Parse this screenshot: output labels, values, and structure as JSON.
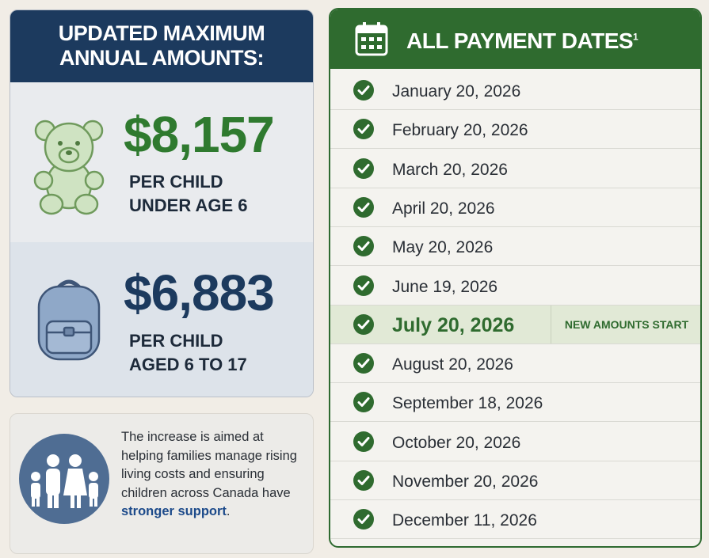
{
  "amounts_panel": {
    "header_lines": [
      "UPDATED MAXIMUM",
      "ANNUAL AMOUNTS:"
    ],
    "items": [
      {
        "amount": "$8,157",
        "label_lines": [
          "PER CHILD",
          "UNDER AGE 6"
        ]
      },
      {
        "amount": "$6,883",
        "label_lines": [
          "PER CHILD",
          "AGED 6 TO 17"
        ]
      }
    ]
  },
  "note": {
    "text": "The increase is aimed at helping families manage rising living costs and ensuring children across Canada have ",
    "emphasis": "stronger support",
    "end": "."
  },
  "dates_panel": {
    "title": "ALL PAYMENT DATES",
    "title_note": "1",
    "dates": [
      "January 20, 2026",
      "February 20, 2026",
      "March 20, 2026",
      "April 20, 2026",
      "May 20, 2026",
      "June 19, 2026",
      "July 20, 2026",
      "August 20, 2026",
      "September 18, 2026",
      "October 20, 2026",
      "November 20, 2026",
      "December 11, 2026"
    ],
    "highlight_index": 6,
    "highlight_tag": "NEW AMOUNTS START"
  }
}
